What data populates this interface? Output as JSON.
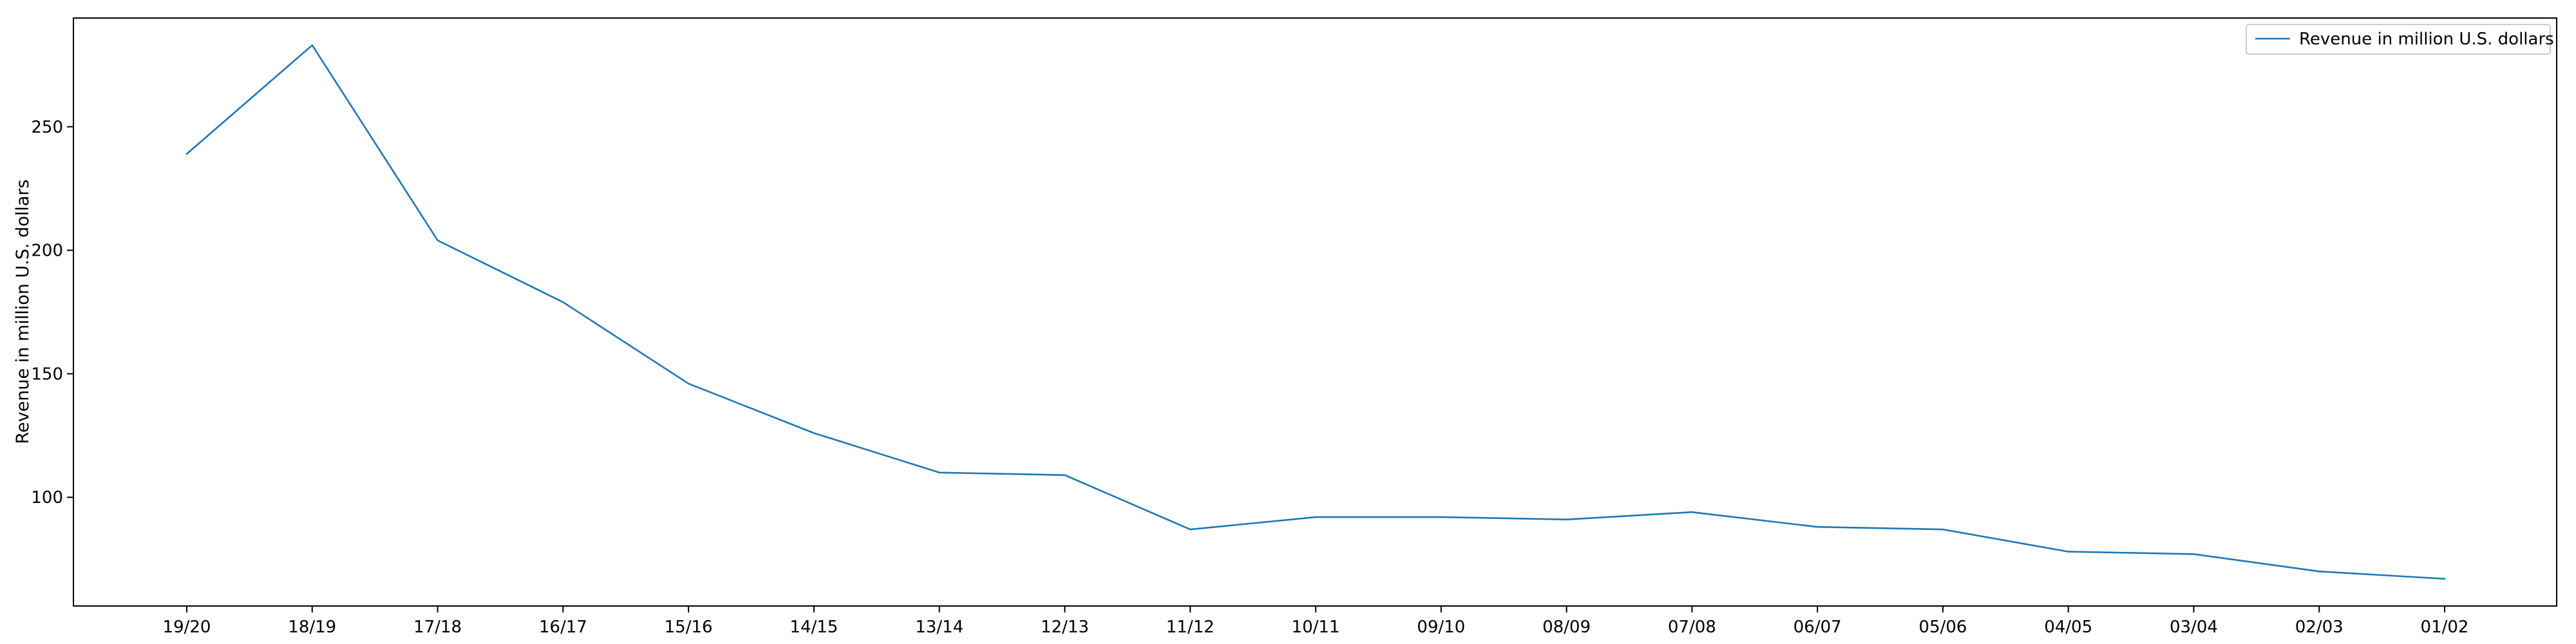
{
  "chart_data": {
    "type": "line",
    "title": "",
    "xlabel": "",
    "ylabel": "Revenue in million U.S. dollars",
    "categories": [
      "19/20",
      "18/19",
      "17/18",
      "16/17",
      "15/16",
      "14/15",
      "13/14",
      "12/13",
      "11/12",
      "10/11",
      "09/10",
      "08/09",
      "07/08",
      "06/07",
      "05/06",
      "04/05",
      "03/04",
      "02/03",
      "01/02"
    ],
    "series": [
      {
        "name": "Revenue in million U.S. dollars",
        "color": "#1f77b4",
        "values": [
          239,
          283,
          204,
          179,
          146,
          126,
          110,
          109,
          87,
          92,
          92,
          91,
          94,
          88,
          87,
          78,
          77,
          70,
          67
        ]
      }
    ],
    "ylim": [
      56,
      294
    ],
    "yticks": [
      100,
      150,
      200,
      250
    ],
    "grid": false,
    "legend": "top-right"
  }
}
